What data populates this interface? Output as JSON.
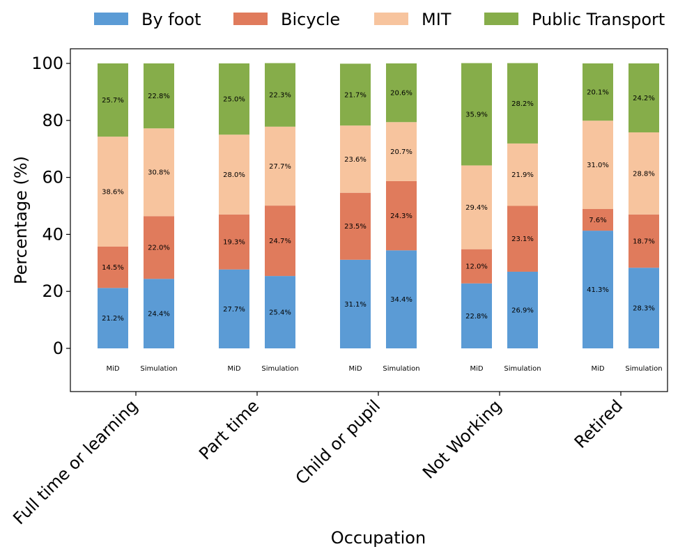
{
  "chart_data": {
    "type": "bar",
    "stacked": true,
    "title": "",
    "xlabel": "Occupation",
    "ylabel": "Percentage (%)",
    "ylim": [
      -15,
      104
    ],
    "yticks": [
      0,
      20,
      40,
      60,
      80,
      100
    ],
    "legend": {
      "placement": "top-center",
      "entries": [
        "By foot",
        "Bicycle",
        "MIT",
        "Public Transport"
      ]
    },
    "categories": [
      "Full time or learning",
      "Part time",
      "Child or pupil",
      "Not Working",
      "Retired"
    ],
    "bar_labels": [
      "MiD",
      "Simulation"
    ],
    "colors": {
      "By foot": "#5b9bd5",
      "Bicycle": "#e07b5c",
      "MIT": "#f7c49e",
      "Public Transport": "#86ad4a"
    },
    "series": [
      {
        "name": "By foot",
        "mid": [
          21.2,
          27.7,
          31.1,
          22.8,
          41.3
        ],
        "simulation": [
          24.4,
          25.4,
          34.4,
          26.9,
          28.3
        ]
      },
      {
        "name": "Bicycle",
        "mid": [
          14.5,
          19.3,
          23.5,
          12.0,
          7.6
        ],
        "simulation": [
          22.0,
          24.7,
          24.3,
          23.1,
          18.7
        ]
      },
      {
        "name": "MIT",
        "mid": [
          38.6,
          28.0,
          23.6,
          29.4,
          31.0
        ],
        "simulation": [
          30.8,
          27.7,
          20.7,
          21.9,
          28.8
        ]
      },
      {
        "name": "Public Transport",
        "mid": [
          25.7,
          25.0,
          21.7,
          35.9,
          20.1
        ],
        "simulation": [
          22.8,
          22.3,
          20.6,
          28.2,
          24.2
        ]
      }
    ]
  }
}
